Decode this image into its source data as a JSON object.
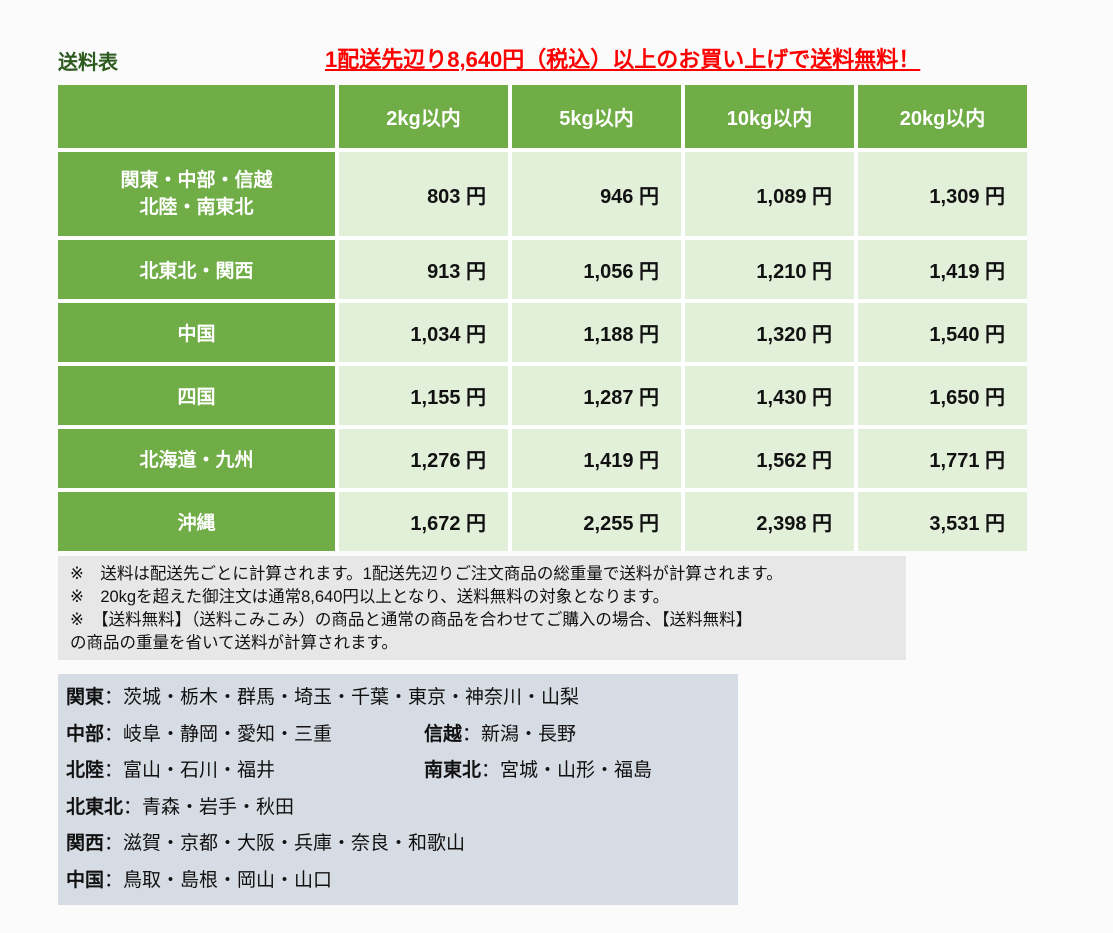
{
  "page": {
    "title": "送料表",
    "promo": "1配送先辺り8,640円（税込）以上のお買い上げで送料無料！"
  },
  "colors": {
    "accent_green": "#70ad47",
    "light_green_cell": "#e2efd9",
    "title_green": "#2d5a1e",
    "promo_red": "#ff0000",
    "notes_gray": "#e7e7e7",
    "regions_bluegray": "#d6dce4"
  },
  "table": {
    "headers": [
      "",
      "2kg以内",
      "5kg以内",
      "10kg以内",
      "20kg以内"
    ],
    "rows": [
      {
        "label_lines": [
          "関東・中部・信越",
          "北陸・南東北"
        ],
        "cells": [
          "803 円",
          "946 円",
          "1,089 円",
          "1,309 円"
        ]
      },
      {
        "label_lines": [
          "北東北・関西"
        ],
        "cells": [
          "913 円",
          "1,056 円",
          "1,210 円",
          "1,419 円"
        ]
      },
      {
        "label_lines": [
          "中国"
        ],
        "cells": [
          "1,034 円",
          "1,188 円",
          "1,320 円",
          "1,540 円"
        ]
      },
      {
        "label_lines": [
          "四国"
        ],
        "cells": [
          "1,155 円",
          "1,287 円",
          "1,430 円",
          "1,650 円"
        ]
      },
      {
        "label_lines": [
          "北海道・九州"
        ],
        "cells": [
          "1,276 円",
          "1,419 円",
          "1,562 円",
          "1,771 円"
        ]
      },
      {
        "label_lines": [
          "沖縄"
        ],
        "cells": [
          "1,672 円",
          "2,255 円",
          "2,398 円",
          "3,531 円"
        ]
      }
    ]
  },
  "notes": {
    "lines": [
      "※　送料は配送先ごとに計算されます。1配送先辺りご注文商品の総重量で送料が計算されます。",
      "※　20kgを超えた御注文は通常8,640円以上となり、送料無料の対象となります。",
      "※　【送料無料】（送料こみこみ）の商品と通常の商品を合わせてご購入の場合、【送料無料】",
      "の商品の重量を省いて送料が計算されます。"
    ]
  },
  "regions": {
    "lines": [
      {
        "parts": [
          {
            "name": "関東",
            "list": "：茨城・栃木・群馬・埼玉・千葉・東京・神奈川・山梨"
          }
        ]
      },
      {
        "parts": [
          {
            "name": "中部",
            "list": "：岐阜・静岡・愛知・三重"
          },
          {
            "name": "信越",
            "list": "：新潟・長野"
          }
        ]
      },
      {
        "parts": [
          {
            "name": "北陸",
            "list": "：富山・石川・福井"
          },
          {
            "name": "南東北",
            "list": "：宮城・山形・福島"
          }
        ]
      },
      {
        "parts": [
          {
            "name": "北東北",
            "list": "：青森・岩手・秋田"
          }
        ]
      },
      {
        "parts": [
          {
            "name": "関西",
            "list": "：滋賀・京都・大阪・兵庫・奈良・和歌山"
          }
        ]
      },
      {
        "parts": [
          {
            "name": "中国",
            "list": "：鳥取・島根・岡山・山口"
          }
        ]
      }
    ]
  }
}
